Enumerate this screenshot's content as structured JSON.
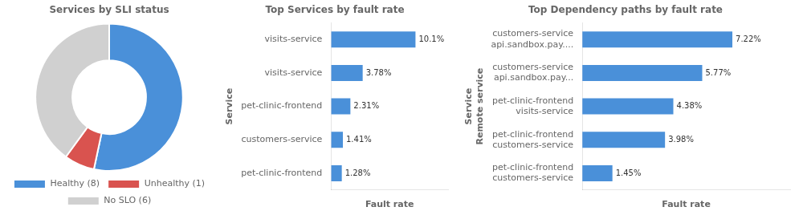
{
  "chart_data": [
    {
      "type": "donut",
      "title": "Services by SLI status",
      "categories": [
        "Healthy (8)",
        "Unhealthy (1)",
        "No SLO (6)"
      ],
      "values": [
        8,
        1,
        6
      ],
      "colors": [
        "#4A90D9",
        "#d9534f",
        "#d0d0d0"
      ],
      "legend": "bottom"
    },
    {
      "type": "bar",
      "orientation": "horizontal",
      "title": "Top Services by fault rate",
      "categories": [
        "visits-service",
        "visits-service",
        "pet-clinic-frontend",
        "customers-service",
        "pet-clinic-frontend"
      ],
      "values": [
        10.1,
        3.78,
        2.31,
        1.41,
        1.28
      ],
      "value_labels": [
        "10.1%",
        "3.78%",
        "2.31%",
        "1.41%",
        "1.28%"
      ],
      "data_labels": true,
      "color": "#4A90D9",
      "xlabel": "Fault rate",
      "ylabel": "Service",
      "xlim": [
        0,
        14
      ],
      "grid": false,
      "tick_labels": "y"
    },
    {
      "type": "bar",
      "orientation": "horizontal",
      "title": "Top Dependency paths by fault rate",
      "categories": [
        [
          "customers-service",
          "api.sandbox.pay...."
        ],
        [
          "customers-service",
          "api.sandbox.pay..."
        ],
        [
          "pet-clinic-frontend",
          "visits-service"
        ],
        [
          "pet-clinic-frontend",
          "customers-service"
        ],
        [
          "pet-clinic-frontend",
          "customers-service"
        ]
      ],
      "values": [
        7.22,
        5.77,
        4.38,
        3.98,
        1.45
      ],
      "value_labels": [
        "7.22%",
        "5.77%",
        "4.38%",
        "3.98%",
        "1.45%"
      ],
      "data_labels": true,
      "color": "#4A90D9",
      "xlabel": "Fault rate",
      "ylabel": [
        "Service",
        "Remote service"
      ],
      "xlim": [
        0,
        10
      ],
      "grid": false,
      "tick_labels": "y"
    }
  ]
}
